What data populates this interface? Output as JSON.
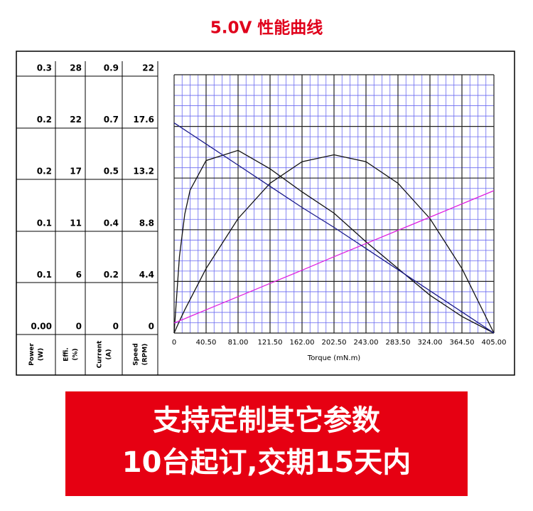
{
  "chart_data": {
    "type": "line",
    "title": "5.0V 性能曲线",
    "xlabel": "Torque (mN.m)",
    "xlim": [
      0,
      405
    ],
    "xticks": [
      0,
      {
        "value": 40.5,
        "label": "40.50"
      },
      {
        "value": 81,
        "label": "81.00"
      },
      {
        "value": 121.5,
        "label": "121.50"
      },
      {
        "value": 162,
        "label": "162.00"
      },
      {
        "value": 202.5,
        "label": "202.50"
      },
      {
        "value": 243,
        "label": "243.00"
      },
      {
        "value": 283.5,
        "label": "283.50"
      },
      {
        "value": 324,
        "label": "324.00"
      },
      {
        "value": 364.5,
        "label": "364.50"
      },
      {
        "value": 405,
        "label": "405.00"
      }
    ],
    "axes": [
      {
        "name": "Power",
        "unit": "(W)",
        "ylim": [
          0,
          0.3
        ],
        "yticks": [
          {
            "value": 0,
            "label": "0.00"
          },
          {
            "value": 0.06,
            "label": "0.1"
          },
          {
            "value": 0.12,
            "label": "0.1"
          },
          {
            "value": 0.18,
            "label": "0.2"
          },
          {
            "value": 0.24,
            "label": "0.2"
          },
          0.3
        ]
      },
      {
        "name": "Effi.",
        "unit": "(%)",
        "ylim": [
          0,
          28
        ],
        "yticks": [
          0,
          {
            "value": 5.6,
            "label": "6"
          },
          {
            "value": 11.2,
            "label": "11"
          },
          {
            "value": 16.8,
            "label": "17"
          },
          {
            "value": 22.4,
            "label": "22"
          },
          28
        ]
      },
      {
        "name": "Current",
        "unit": "(A)",
        "ylim": [
          0,
          0.9
        ],
        "yticks": [
          0,
          {
            "value": 0.18,
            "label": "0.2"
          },
          {
            "value": 0.36,
            "label": "0.4"
          },
          {
            "value": 0.54,
            "label": "0.5"
          },
          {
            "value": 0.72,
            "label": "0.7"
          },
          0.9
        ]
      },
      {
        "name": "Speed",
        "unit": "(RPM)",
        "ylim": [
          0,
          22
        ],
        "yticks": [
          0,
          4.4,
          8.8,
          13.2,
          17.6,
          22
        ]
      }
    ],
    "x": [
      0,
      6.75,
      13.5,
      20.25,
      40.5,
      81,
      121.5,
      162,
      202.5,
      243,
      283.5,
      324,
      364.5,
      405
    ],
    "series": [
      {
        "axis": 0,
        "color": "#111111",
        "values": [
          0,
          0.014,
          0.027,
          0.039,
          0.075,
          0.133,
          0.174,
          0.199,
          0.207,
          0.199,
          0.174,
          0.133,
          0.075,
          0
        ]
      },
      {
        "axis": 1,
        "color": "#111111",
        "values": [
          0,
          8.3,
          12.9,
          15.5,
          18.7,
          19.8,
          17.8,
          15.3,
          13.0,
          9.9,
          7.0,
          4.1,
          1.8,
          0
        ]
      },
      {
        "axis": 2,
        "color": "#e020e0",
        "values": [
          0.035,
          0.043,
          0.05,
          0.058,
          0.081,
          0.127,
          0.173,
          0.219,
          0.266,
          0.312,
          0.358,
          0.404,
          0.45,
          0.496
        ]
      },
      {
        "axis": 3,
        "color": "#1a1a8c",
        "values": [
          17.9,
          17.6,
          17.3,
          17.0,
          16.1,
          14.3,
          12.5,
          10.7,
          9.0,
          7.2,
          5.4,
          3.6,
          1.8,
          0
        ]
      }
    ]
  },
  "banner": {
    "line1": "支持定制其它参数",
    "line2": "10台起订,交期15天内"
  }
}
